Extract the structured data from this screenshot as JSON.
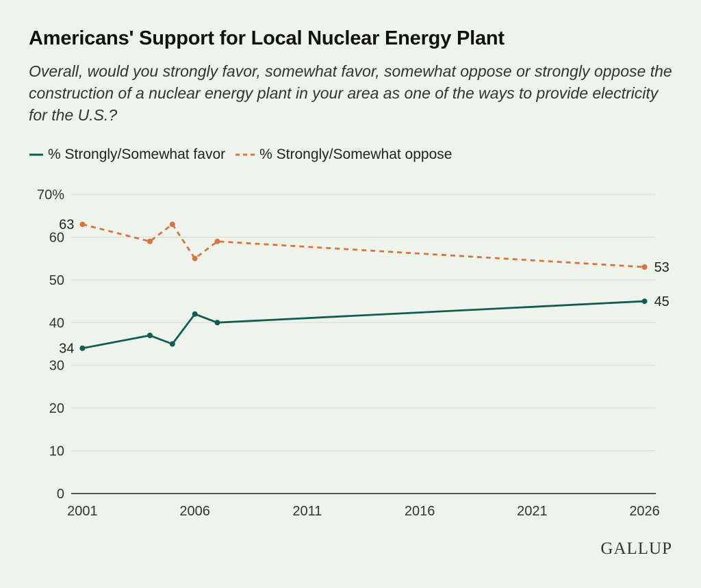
{
  "title": "Americans' Support for Local Nuclear Energy Plant",
  "subtitle": "Overall, would you strongly favor, somewhat favor, somewhat oppose or strongly oppose the construction of a nuclear energy plant in your area as one of the ways to provide electricity for the U.S.?",
  "legend": {
    "favor_label": "% Strongly/Somewhat favor",
    "oppose_label": "% Strongly/Somewhat oppose"
  },
  "logo_text": "GALLUP",
  "colors": {
    "favor": "#0f5c52",
    "oppose": "#d9743e",
    "grid": "#d5dbd4",
    "axis": "#222222",
    "background": "#eef4ec"
  },
  "chart_data": {
    "type": "line",
    "title": "Americans' Support for Local Nuclear Energy Plant",
    "xlabel": "",
    "ylabel": "",
    "xlim": [
      2000.5,
      2026.5
    ],
    "ylim": [
      0,
      70
    ],
    "x_ticks": [
      2001,
      2006,
      2011,
      2016,
      2021,
      2026
    ],
    "y_ticks": [
      0,
      10,
      20,
      30,
      40,
      50,
      60,
      70
    ],
    "y_tick_labels": [
      "0",
      "10",
      "20",
      "30",
      "40",
      "50",
      "60",
      "70%"
    ],
    "grid": true,
    "legend_position": "top-left",
    "series": [
      {
        "name": "% Strongly/Somewhat favor",
        "style": "solid",
        "points": [
          {
            "x": 2001.0,
            "y": 34
          },
          {
            "x": 2004.0,
            "y": 37
          },
          {
            "x": 2005.0,
            "y": 35
          },
          {
            "x": 2006.0,
            "y": 42
          },
          {
            "x": 2007.0,
            "y": 40
          },
          {
            "x": 2026.0,
            "y": 45
          }
        ],
        "data_labels": [
          {
            "x": 2001.0,
            "y": 34,
            "text": "34",
            "side": "left"
          },
          {
            "x": 2026.0,
            "y": 45,
            "text": "45",
            "side": "right"
          }
        ]
      },
      {
        "name": "% Strongly/Somewhat oppose",
        "style": "dashed",
        "points": [
          {
            "x": 2001.0,
            "y": 63
          },
          {
            "x": 2004.0,
            "y": 59
          },
          {
            "x": 2005.0,
            "y": 63
          },
          {
            "x": 2006.0,
            "y": 55
          },
          {
            "x": 2007.0,
            "y": 59
          },
          {
            "x": 2026.0,
            "y": 53
          }
        ],
        "data_labels": [
          {
            "x": 2001.0,
            "y": 63,
            "text": "63",
            "side": "left"
          },
          {
            "x": 2026.0,
            "y": 53,
            "text": "53",
            "side": "right"
          }
        ]
      }
    ]
  }
}
